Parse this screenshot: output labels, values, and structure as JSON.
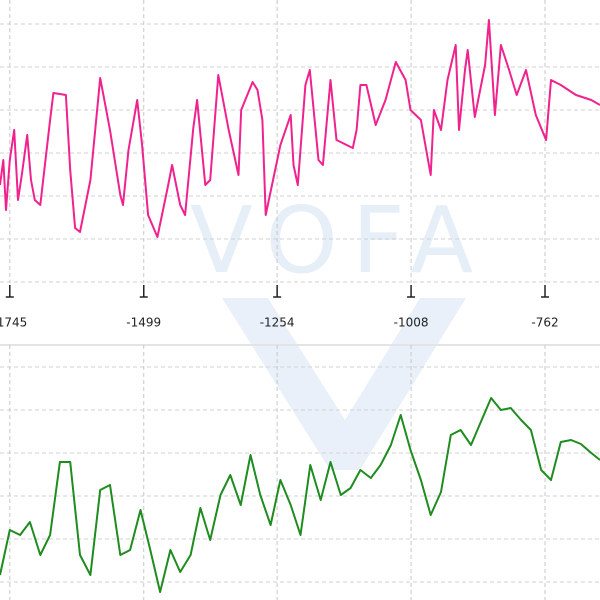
{
  "watermark": "VOFA",
  "chart_data": [
    {
      "type": "line",
      "color": "#f0228e",
      "grid": true,
      "xlim": [
        -1763,
        -661
      ],
      "ylim": [
        0,
        283
      ],
      "xticks": [
        -1745,
        -1499,
        -1254,
        -1008,
        -762
      ],
      "x": [
        -1763,
        -1757,
        -1752,
        -1745,
        -1737,
        -1730,
        -1723,
        -1713,
        -1706,
        -1699,
        -1689,
        -1671,
        -1665,
        -1642,
        -1634,
        -1625,
        -1616,
        -1597,
        -1579,
        -1561,
        -1542,
        -1537,
        -1527,
        -1511,
        -1502,
        -1491,
        -1474,
        -1454,
        -1447,
        -1432,
        -1423,
        -1408,
        -1401,
        -1386,
        -1377,
        -1362,
        -1343,
        -1325,
        -1320,
        -1299,
        -1290,
        -1281,
        -1275,
        -1248,
        -1229,
        -1224,
        -1216,
        -1202,
        -1194,
        -1178,
        -1170,
        -1156,
        -1145,
        -1115,
        -1108,
        -1101,
        -1090,
        -1073,
        -1055,
        -1036,
        -1018,
        -1009,
        -990,
        -972,
        -966,
        -953,
        -941,
        -926,
        -920,
        -909,
        -904,
        -891,
        -872,
        -865,
        -854,
        -843,
        -828,
        -814,
        -797,
        -779,
        -760,
        -751,
        -733,
        -705,
        -677,
        -661
      ],
      "values": [
        98,
        123,
        73,
        123,
        153,
        83,
        108,
        148,
        103,
        83,
        78,
        163,
        190,
        188,
        113,
        55,
        51,
        103,
        205,
        153,
        88,
        78,
        133,
        183,
        138,
        68,
        46,
        98,
        118,
        78,
        68,
        155,
        183,
        98,
        103,
        208,
        153,
        108,
        173,
        201,
        193,
        163,
        68,
        138,
        168,
        118,
        98,
        198,
        213,
        123,
        118,
        203,
        143,
        135,
        153,
        198,
        198,
        158,
        183,
        221,
        203,
        173,
        163,
        108,
        173,
        153,
        203,
        238,
        153,
        213,
        233,
        166,
        218,
        263,
        168,
        238,
        213,
        188,
        213,
        168,
        143,
        203,
        198,
        188,
        183,
        178
      ]
    },
    {
      "type": "line",
      "color": "#1f8c1f",
      "grid": true,
      "xlim": [
        -1763,
        -661
      ],
      "ylim": [
        0,
        255
      ],
      "x": [
        -1763,
        -1745,
        -1726,
        -1708,
        -1689,
        -1671,
        -1653,
        -1634,
        -1616,
        -1597,
        -1579,
        -1561,
        -1542,
        -1524,
        -1505,
        -1487,
        -1469,
        -1450,
        -1432,
        -1413,
        -1395,
        -1377,
        -1358,
        -1340,
        -1321,
        -1303,
        -1285,
        -1266,
        -1248,
        -1229,
        -1211,
        -1193,
        -1174,
        -1156,
        -1137,
        -1119,
        -1101,
        -1082,
        -1064,
        -1045,
        -1027,
        -1009,
        -990,
        -972,
        -953,
        -935,
        -917,
        -898,
        -880,
        -861,
        -843,
        -825,
        -806,
        -788,
        -769,
        -751,
        -733,
        -714,
        -696,
        -677,
        -661
      ],
      "values": [
        25,
        70,
        65,
        78,
        45,
        65,
        138,
        138,
        45,
        25,
        110,
        115,
        45,
        50,
        90,
        50,
        8,
        50,
        28,
        45,
        92,
        60,
        105,
        125,
        95,
        145,
        105,
        75,
        120,
        95,
        65,
        135,
        100,
        138,
        105,
        112,
        130,
        122,
        135,
        155,
        185,
        150,
        120,
        85,
        108,
        165,
        170,
        155,
        178,
        202,
        190,
        192,
        180,
        170,
        130,
        120,
        158,
        160,
        156,
        147,
        140
      ]
    }
  ]
}
